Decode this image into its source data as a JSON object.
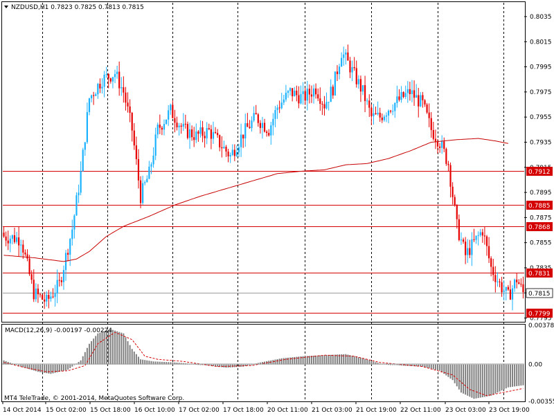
{
  "window": {
    "symbol": "NZDUSD,H1",
    "ohlc": "0.7823 0.7825 0.7813 0.7815",
    "copyright": "MT4 TeleTrade, © 2001-2014, MetaQuotes Software Corp."
  },
  "colors": {
    "bull": "#1ab2ff",
    "bear": "#e60000",
    "level": "#d40000",
    "current": "#9a9a9a",
    "macd_hist": "#808080"
  },
  "chart_data": [
    {
      "type": "candlestick",
      "title": "NZDUSD,H1",
      "ylim": [
        0.7792,
        0.8046
      ],
      "y_ticks": [
        "0.8035",
        "0.8015",
        "0.7995",
        "0.7975",
        "0.7955",
        "0.7935",
        "0.7915",
        "0.7895",
        "0.7875",
        "0.7855",
        "0.7835",
        "0.7815",
        "0.7795"
      ],
      "x_ticks": [
        "14 Oct 2014",
        "15 Oct 02:00",
        "15 Oct 18:00",
        "16 Oct 10:00",
        "17 Oct 02:00",
        "17 Oct 18:00",
        "20 Oct 11:00",
        "21 Oct 03:00",
        "21 Oct 19:00",
        "22 Oct 11:00",
        "23 Oct 03:00",
        "23 Oct 19:00"
      ],
      "horizontal_levels": [
        0.7912,
        0.7885,
        0.7868,
        0.7831,
        0.7799
      ],
      "level_labels": [
        "0.7912",
        "0.7885",
        "0.7868",
        "0.7831",
        "0.7799"
      ],
      "current_price": 0.7815,
      "current_label": "0.7815",
      "close_path": [
        [
          0,
          0.786
        ],
        [
          8,
          0.7858
        ],
        [
          14,
          0.7815
        ],
        [
          20,
          0.7808
        ],
        [
          26,
          0.7822
        ],
        [
          32,
          0.7866
        ],
        [
          36,
          0.791
        ],
        [
          40,
          0.797
        ],
        [
          46,
          0.7985
        ],
        [
          52,
          0.799
        ],
        [
          56,
          0.7975
        ],
        [
          60,
          0.7945
        ],
        [
          64,
          0.7892
        ],
        [
          68,
          0.791
        ],
        [
          72,
          0.7945
        ],
        [
          78,
          0.796
        ],
        [
          84,
          0.7945
        ],
        [
          90,
          0.794
        ],
        [
          96,
          0.7944
        ],
        [
          102,
          0.7932
        ],
        [
          106,
          0.7924
        ],
        [
          112,
          0.7942
        ],
        [
          118,
          0.7955
        ],
        [
          124,
          0.7945
        ],
        [
          128,
          0.7963
        ],
        [
          134,
          0.7975
        ],
        [
          140,
          0.797
        ],
        [
          146,
          0.7978
        ],
        [
          150,
          0.7965
        ],
        [
          154,
          0.7978
        ],
        [
          158,
          0.8007
        ],
        [
          162,
          0.7995
        ],
        [
          168,
          0.7975
        ],
        [
          172,
          0.7955
        ],
        [
          176,
          0.7955
        ],
        [
          180,
          0.7962
        ],
        [
          186,
          0.797
        ],
        [
          190,
          0.7975
        ],
        [
          196,
          0.7965
        ],
        [
          200,
          0.7945
        ],
        [
          204,
          0.7935
        ],
        [
          208,
          0.7918
        ],
        [
          212,
          0.7868
        ],
        [
          216,
          0.7845
        ],
        [
          220,
          0.7855
        ],
        [
          224,
          0.7865
        ],
        [
          228,
          0.7835
        ],
        [
          232,
          0.7822
        ],
        [
          236,
          0.7812
        ],
        [
          240,
          0.7826
        ],
        [
          243,
          0.7815
        ]
      ],
      "ma_path": [
        [
          0,
          0.7845
        ],
        [
          14,
          0.7843
        ],
        [
          28,
          0.784
        ],
        [
          34,
          0.7842
        ],
        [
          40,
          0.7848
        ],
        [
          48,
          0.786
        ],
        [
          56,
          0.7868
        ],
        [
          68,
          0.7876
        ],
        [
          80,
          0.7885
        ],
        [
          92,
          0.7892
        ],
        [
          104,
          0.7898
        ],
        [
          116,
          0.7904
        ],
        [
          128,
          0.791
        ],
        [
          140,
          0.7912
        ],
        [
          150,
          0.7913
        ],
        [
          160,
          0.7917
        ],
        [
          170,
          0.7918
        ],
        [
          180,
          0.7922
        ],
        [
          190,
          0.7928
        ],
        [
          200,
          0.7935
        ],
        [
          212,
          0.7937
        ],
        [
          222,
          0.7938
        ],
        [
          230,
          0.7936
        ],
        [
          236,
          0.7934
        ]
      ]
    },
    {
      "type": "bar",
      "title": "MACD(12,26,9) -0.00197 -0.00224",
      "ylim": [
        -0.00355,
        0.00378
      ],
      "y_ticks": [
        "0.00378",
        "0.00",
        "-0.00355"
      ],
      "histogram_path": [
        [
          0,
          0.0004
        ],
        [
          8,
          -0.0002
        ],
        [
          16,
          -0.0007
        ],
        [
          22,
          -0.0009
        ],
        [
          30,
          -0.0005
        ],
        [
          36,
          0.0004
        ],
        [
          40,
          0.002
        ],
        [
          44,
          0.003
        ],
        [
          50,
          0.0034
        ],
        [
          56,
          0.003
        ],
        [
          60,
          0.0015
        ],
        [
          64,
          0.0005
        ],
        [
          70,
          0.0003
        ],
        [
          80,
          0.0002
        ],
        [
          92,
          0.0
        ],
        [
          104,
          -0.0003
        ],
        [
          112,
          -0.0002
        ],
        [
          120,
          0.0002
        ],
        [
          130,
          0.0006
        ],
        [
          140,
          0.0008
        ],
        [
          150,
          0.0009
        ],
        [
          160,
          0.001
        ],
        [
          168,
          0.0006
        ],
        [
          176,
          0.0001
        ],
        [
          186,
          -0.0001
        ],
        [
          196,
          -0.0002
        ],
        [
          204,
          -0.0006
        ],
        [
          210,
          -0.0015
        ],
        [
          214,
          -0.0027
        ],
        [
          220,
          -0.0033
        ],
        [
          228,
          -0.003
        ],
        [
          236,
          -0.0022
        ],
        [
          243,
          -0.002
        ]
      ],
      "signal_path": [
        [
          0,
          0.0002
        ],
        [
          10,
          -0.0003
        ],
        [
          20,
          -0.0007
        ],
        [
          30,
          -0.0006
        ],
        [
          38,
          -0.0001
        ],
        [
          44,
          0.002
        ],
        [
          52,
          0.0031
        ],
        [
          60,
          0.0024
        ],
        [
          66,
          0.0008
        ],
        [
          72,
          0.0005
        ],
        [
          84,
          0.0003
        ],
        [
          100,
          -0.0002
        ],
        [
          116,
          -0.0001
        ],
        [
          132,
          0.0005
        ],
        [
          150,
          0.0009
        ],
        [
          164,
          0.0008
        ],
        [
          176,
          0.0002
        ],
        [
          196,
          -0.0002
        ],
        [
          210,
          -0.001
        ],
        [
          218,
          -0.0024
        ],
        [
          226,
          -0.003
        ],
        [
          236,
          -0.0026
        ],
        [
          243,
          -0.0023
        ]
      ]
    }
  ]
}
